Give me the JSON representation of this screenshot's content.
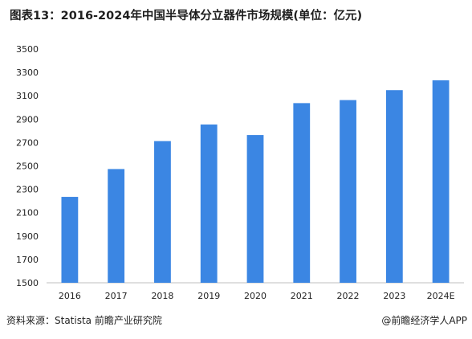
{
  "title": "图表13：2016-2024年中国半导体分立器件市场规模(单位：亿元)",
  "source": "资料来源：Statista 前瞻产业研究院",
  "credit": "@前瞻经济学人APP",
  "colors": {
    "bar": "#3b86e3",
    "axis": "#bfbfbf",
    "text": "#222222"
  },
  "chart_data": {
    "type": "bar",
    "categories": [
      "2016",
      "2017",
      "2018",
      "2019",
      "2020",
      "2021",
      "2022",
      "2023",
      "2024E"
    ],
    "values": [
      2235,
      2473,
      2712,
      2854,
      2764,
      3037,
      3063,
      3148,
      3232
    ],
    "ylim": [
      1500,
      3500
    ],
    "yticks": [
      1500,
      1700,
      1900,
      2100,
      2300,
      2500,
      2700,
      2900,
      3100,
      3300,
      3500
    ],
    "grid": false,
    "xlabel": "",
    "ylabel": ""
  }
}
